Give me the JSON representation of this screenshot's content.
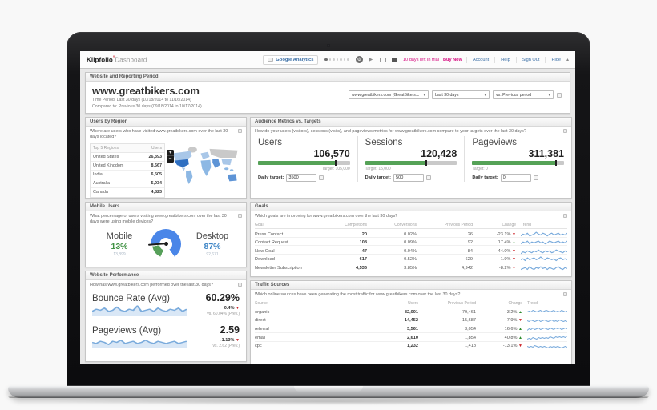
{
  "icons": {
    "dropdown_caret": "▾",
    "hide_caret": "▴",
    "play": "▶",
    "gear": "⚙",
    "plus": "+",
    "minus": "−"
  },
  "colors": {
    "accent_green": "#55a257",
    "gauge_blue": "#4a86e8",
    "negative_red": "#cc2127",
    "positive_green": "#2e8b2e",
    "trial_pink": "#d5067d",
    "link_blue": "#3a6ea5",
    "spark_blue": "#7aabdc"
  },
  "topbar": {
    "logo_primary": "Klipfolio",
    "logo_mark": "°",
    "logo_secondary": "Dashboard",
    "tab_label": "Google Analytics",
    "trial_text": "10 days left in trial",
    "buy_now": "Buy Now",
    "links": {
      "account": "Account",
      "help": "Help",
      "sign_out": "Sign Out",
      "hide": "Hide"
    }
  },
  "report_header": {
    "section_title": "Website and Reporting Period",
    "site": "www.greatbikers.com",
    "time_period": "Time Period: Last 30 days (10/18/2014 to 11/16/2014)",
    "compared_to": "Compared to: Previous 30 days (09/18/2014 to 10/17/2014)",
    "selectors": {
      "site": "www.greatbikers.com (GreatBikers.c",
      "range": "Last 30 days",
      "compare": "vs. Previous period"
    }
  },
  "users_by_region": {
    "title": "Users by Region",
    "description": "Where are users who have visited www.greatbikers.com over the last 30 days located?",
    "columns": {
      "region": "Top 5 Regions",
      "users": "Users"
    },
    "rows": [
      {
        "region": "United States",
        "users": "26,393"
      },
      {
        "region": "United Kingdom",
        "users": "8,667"
      },
      {
        "region": "India",
        "users": "6,505"
      },
      {
        "region": "Australia",
        "users": "5,934"
      },
      {
        "region": "Canada",
        "users": "4,823"
      }
    ]
  },
  "audience_metrics": {
    "title": "Audience Metrics vs. Targets",
    "description": "How do your users (visitors), sessions (visits), and pageviews metrics for www.greatbikers.com compare to your targets over the last 30 days?",
    "daily_target_label": "Daily target:",
    "metrics": [
      {
        "label": "Users",
        "value": "106,570",
        "target_label": "Target: 105,000",
        "daily_value": "3500",
        "fill_pct": 85,
        "marker_pct": 84
      },
      {
        "label": "Sessions",
        "value": "120,428",
        "target_label": "Target: 15,000",
        "daily_value": "500",
        "fill_pct": 67,
        "marker_pct": 66
      },
      {
        "label": "Pageviews",
        "value": "311,381",
        "target_label": "Target: 0",
        "daily_value": "0",
        "fill_pct": 91,
        "marker_pct": 90
      }
    ]
  },
  "mobile_users": {
    "title": "Mobile Users",
    "description": "What percentage of users visiting www.greatbikers.com over the last 30 days were using mobile devices?",
    "mobile_label": "Mobile",
    "mobile_pct": "13%",
    "mobile_count": "13,899",
    "desktop_label": "Desktop",
    "desktop_pct": "87%",
    "desktop_count": "92,671"
  },
  "goals": {
    "title": "Goals",
    "description": "Which goals are improving for www.greatbikers.com over the last 30 days?",
    "columns": {
      "goal": "Goal",
      "completions": "Completions",
      "conversions": "Conversions",
      "previous": "Previous Period",
      "change": "Change",
      "trend": "Trend"
    },
    "rows": [
      {
        "goal": "Press Contact",
        "completions": "20",
        "conversions": "0.02%",
        "previous": "26",
        "change": "-23.1%",
        "arrow": "▼",
        "dir": "down",
        "spark": [
          3,
          5,
          4,
          6,
          3,
          4,
          5,
          7,
          5,
          4,
          6,
          5,
          3,
          5,
          6,
          4,
          5,
          6,
          4,
          5,
          4,
          6
        ]
      },
      {
        "goal": "Contact Request",
        "completions": "108",
        "conversions": "0.09%",
        "previous": "92",
        "change": "17.4%",
        "arrow": "▲",
        "dir": "up",
        "spark": [
          4,
          6,
          5,
          7,
          4,
          6,
          5,
          6,
          7,
          5,
          6,
          4,
          5,
          7,
          6,
          5,
          6,
          7,
          5,
          6,
          5,
          7
        ]
      },
      {
        "goal": "New Goal",
        "completions": "47",
        "conversions": "0.04%",
        "previous": "84",
        "change": "-44.0%",
        "arrow": "▼",
        "dir": "down",
        "spark": [
          2,
          4,
          3,
          5,
          4,
          3,
          5,
          4,
          6,
          4,
          3,
          5,
          4,
          5,
          3,
          4,
          6,
          5,
          4,
          3,
          5,
          4
        ]
      },
      {
        "goal": "Download",
        "completions": "617",
        "conversions": "0.52%",
        "previous": "629",
        "change": "-1.9%",
        "arrow": "▼",
        "dir": "down",
        "spark": [
          5,
          6,
          4,
          7,
          5,
          6,
          7,
          5,
          6,
          8,
          6,
          5,
          7,
          6,
          5,
          6,
          4,
          6,
          7,
          5,
          6,
          5
        ]
      },
      {
        "goal": "Newsletter Subscription",
        "completions": "4,536",
        "conversions": "3.85%",
        "previous": "4,942",
        "change": "-8.2%",
        "arrow": "▼",
        "dir": "down",
        "spark": [
          4,
          5,
          6,
          4,
          7,
          5,
          4,
          6,
          5,
          7,
          5,
          6,
          4,
          6,
          5,
          4,
          6,
          7,
          5,
          4,
          6,
          5
        ]
      }
    ]
  },
  "website_performance": {
    "title": "Website Performance",
    "description": "How has www.greatbikers.com performed over the last 30 days?",
    "metrics": [
      {
        "label": "Bounce Rate (Avg)",
        "value": "60.29%",
        "change": "0.4%",
        "arrow": "▼",
        "dir": "down",
        "prev": "vs. 60.04% (Prev.)",
        "spark": [
          4,
          6,
          5,
          7,
          4,
          5,
          8,
          5,
          4,
          6,
          5,
          9,
          4,
          5,
          6,
          4,
          7,
          5,
          4,
          6,
          5,
          7,
          4,
          6
        ]
      },
      {
        "label": "Pageviews (Avg)",
        "value": "2.59",
        "change": "-1.13%",
        "arrow": "▼",
        "dir": "down",
        "prev": "vs. 2.62 (Prev.)",
        "spark": [
          5,
          4,
          6,
          5,
          3,
          6,
          5,
          7,
          4,
          5,
          6,
          4,
          5,
          7,
          5,
          4,
          6,
          5,
          4,
          5,
          6,
          4,
          5,
          6
        ]
      }
    ]
  },
  "traffic_sources": {
    "title": "Traffic Sources",
    "description": "Which online sources have been generating the most traffic for www.greatbikers.com over the last 30 days?",
    "columns": {
      "source": "Source",
      "users": "Users",
      "previous": "Previous Period",
      "change": "Change",
      "trend": "Trend"
    },
    "rows": [
      {
        "source": "organic",
        "users": "82,001",
        "previous": "79,461",
        "change": "3.2%",
        "arrow": "▲",
        "dir": "up",
        "spark": [
          5,
          6,
          5,
          7,
          6,
          5,
          6,
          7,
          5,
          6,
          7,
          6,
          5,
          6,
          7,
          5,
          6,
          5,
          7,
          6,
          5,
          6
        ]
      },
      {
        "source": "direct",
        "users": "14,452",
        "previous": "15,687",
        "change": "-7.9%",
        "arrow": "▼",
        "dir": "down",
        "spark": [
          5,
          4,
          6,
          5,
          4,
          5,
          6,
          4,
          5,
          6,
          5,
          4,
          5,
          6,
          4,
          5,
          4,
          6,
          5,
          4,
          5,
          4
        ]
      },
      {
        "source": "referral",
        "users": "3,561",
        "previous": "3,054",
        "change": "16.6%",
        "arrow": "▲",
        "dir": "up",
        "spark": [
          3,
          5,
          4,
          6,
          4,
          5,
          6,
          4,
          5,
          6,
          5,
          4,
          6,
          5,
          4,
          6,
          5,
          6,
          4,
          5,
          6,
          5
        ]
      },
      {
        "source": "email",
        "users": "2,610",
        "previous": "1,854",
        "change": "40.8%",
        "arrow": "▲",
        "dir": "up",
        "spark": [
          3,
          4,
          3,
          5,
          4,
          3,
          5,
          4,
          5,
          4,
          5,
          4,
          6,
          5,
          4,
          6,
          5,
          6,
          5,
          6,
          5,
          7
        ]
      },
      {
        "source": "cpc",
        "users": "1,232",
        "previous": "1,418",
        "change": "-13.1%",
        "arrow": "▼",
        "dir": "down",
        "spark": [
          5,
          4,
          5,
          4,
          6,
          5,
          4,
          5,
          4,
          5,
          4,
          3,
          5,
          4,
          5,
          4,
          5,
          4,
          3,
          4,
          5,
          4
        ]
      }
    ]
  }
}
